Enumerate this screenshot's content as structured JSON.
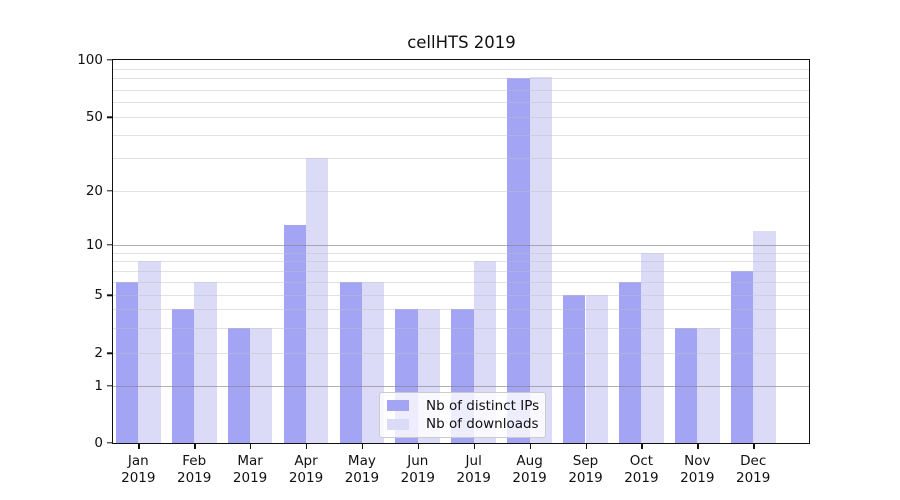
{
  "chart_data": {
    "type": "bar",
    "title": "cellHTS 2019",
    "categories": [
      {
        "month": "Jan",
        "year": "2019"
      },
      {
        "month": "Feb",
        "year": "2019"
      },
      {
        "month": "Mar",
        "year": "2019"
      },
      {
        "month": "Apr",
        "year": "2019"
      },
      {
        "month": "May",
        "year": "2019"
      },
      {
        "month": "Jun",
        "year": "2019"
      },
      {
        "month": "Jul",
        "year": "2019"
      },
      {
        "month": "Aug",
        "year": "2019"
      },
      {
        "month": "Sep",
        "year": "2019"
      },
      {
        "month": "Oct",
        "year": "2019"
      },
      {
        "month": "Nov",
        "year": "2019"
      },
      {
        "month": "Dec",
        "year": "2019"
      }
    ],
    "series": [
      {
        "name": "Nb of distinct IPs",
        "color": "#a4a4f4",
        "values": [
          6,
          4,
          3,
          13,
          6,
          4,
          4,
          80,
          5,
          6,
          3,
          7
        ]
      },
      {
        "name": "Nb of downloads",
        "color": "#dbdbf8",
        "values": [
          8,
          6,
          3,
          30,
          6,
          4,
          8,
          81,
          5,
          9,
          3,
          12
        ]
      }
    ],
    "yaxis": {
      "ticks": [
        0,
        1,
        2,
        5,
        10,
        20,
        50,
        100
      ],
      "minor_ticks": [
        3,
        4,
        6,
        7,
        8,
        9,
        30,
        40,
        60,
        70,
        80,
        90
      ],
      "scale": "log-like (compressed below 1, zero shown)",
      "range": [
        0,
        100
      ]
    },
    "xlabel": "",
    "ylabel": "",
    "legend_position": "lower center",
    "grid": {
      "horizontal_major": true,
      "horizontal_minor": true,
      "drawn_above_bars": true
    }
  },
  "colors": {
    "grid_major": "rgba(128,128,128,0.6)",
    "grid_minor": "rgba(190,190,200,0.45)",
    "axis": "#111111"
  }
}
